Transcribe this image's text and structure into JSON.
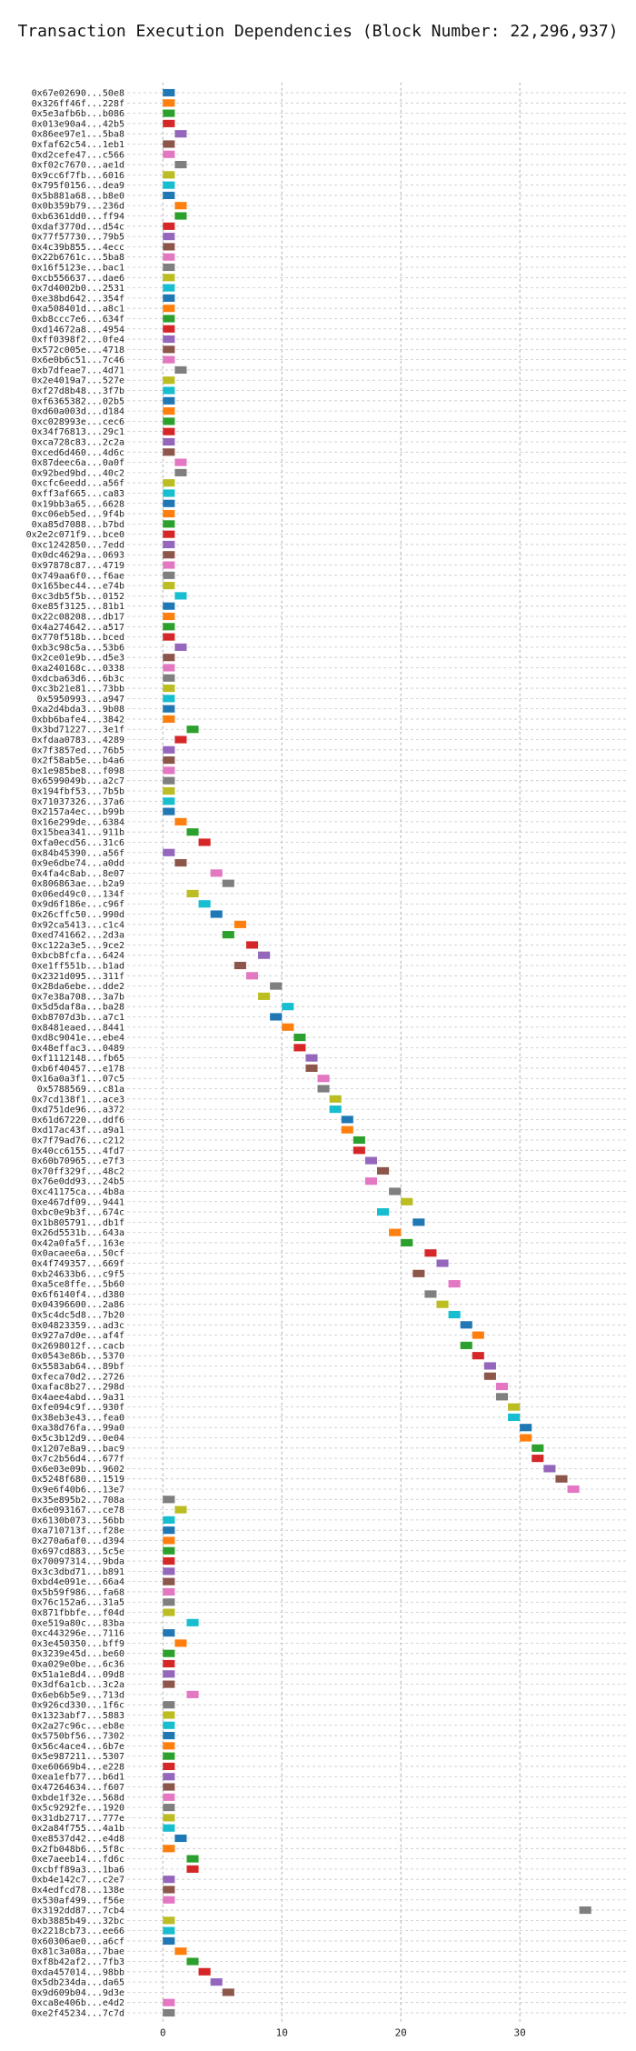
{
  "chart_data": {
    "type": "bar",
    "orientation": "horizontal",
    "title": "Transaction Execution Dependencies (Block Number: 22,296,937)",
    "xlabel": "",
    "ylabel": "",
    "xlim": [
      -3,
      39
    ],
    "xticks": [
      0,
      10,
      20,
      30
    ],
    "grid": true,
    "legend": false,
    "palette": [
      "#1f77b4",
      "#ff7f0e",
      "#2ca02c",
      "#d62728",
      "#9467bd",
      "#8c564b",
      "#e377c2",
      "#7f7f7f",
      "#bcbd22",
      "#17becf"
    ],
    "transactions": [
      {
        "label": "0x67e02690...50e8",
        "start": 0,
        "end": 1
      },
      {
        "label": "0x326ff46f...228f",
        "start": 0,
        "end": 1
      },
      {
        "label": "0x5e3afb6b...b086",
        "start": 0,
        "end": 1
      },
      {
        "label": "0x013e90a4...42b5",
        "start": 0,
        "end": 1
      },
      {
        "label": "0x86ee97e1...5ba8",
        "start": 1,
        "end": 2
      },
      {
        "label": "0xfaf62c54...1eb1",
        "start": 0,
        "end": 1
      },
      {
        "label": "0xd2cefe47...c566",
        "start": 0,
        "end": 1
      },
      {
        "label": "0xf02c7670...ae1d",
        "start": 1,
        "end": 2
      },
      {
        "label": "0x9cc6f7fb...6016",
        "start": 0,
        "end": 1
      },
      {
        "label": "0x795f0156...dea9",
        "start": 0,
        "end": 1
      },
      {
        "label": "0x5b881a68...b8e0",
        "start": 0,
        "end": 1
      },
      {
        "label": "0x0b359b79...236d",
        "start": 1,
        "end": 2
      },
      {
        "label": "0xb6361dd0...ff94",
        "start": 1,
        "end": 2
      },
      {
        "label": "0xdaf3770d...d54c",
        "start": 0,
        "end": 1
      },
      {
        "label": "0x77f57730...79b5",
        "start": 0,
        "end": 1
      },
      {
        "label": "0x4c39b855...4ecc",
        "start": 0,
        "end": 1
      },
      {
        "label": "0x22b6761c...5ba8",
        "start": 0,
        "end": 1
      },
      {
        "label": "0x16f5123e...bac1",
        "start": 0,
        "end": 1
      },
      {
        "label": "0xcb556637...dae6",
        "start": 0,
        "end": 1
      },
      {
        "label": "0x7d4002b0...2531",
        "start": 0,
        "end": 1
      },
      {
        "label": "0xe38bd642...354f",
        "start": 0,
        "end": 1
      },
      {
        "label": "0xa508401d...a8c1",
        "start": 0,
        "end": 1
      },
      {
        "label": "0xb8ccc7e6...634f",
        "start": 0,
        "end": 1
      },
      {
        "label": "0xd14672a8...4954",
        "start": 0,
        "end": 1
      },
      {
        "label": "0xff0398f2...0fe4",
        "start": 0,
        "end": 1
      },
      {
        "label": "0x572c005e...4718",
        "start": 0,
        "end": 1
      },
      {
        "label": "0x6e0b6c51...7c46",
        "start": 0,
        "end": 1
      },
      {
        "label": "0xb7dfeae7...4d71",
        "start": 1,
        "end": 2
      },
      {
        "label": "0x2e4019a7...527e",
        "start": 0,
        "end": 1
      },
      {
        "label": "0xf27d8b48...3f7b",
        "start": 0,
        "end": 1
      },
      {
        "label": "0xf6365382...02b5",
        "start": 0,
        "end": 1
      },
      {
        "label": "0xd60a003d...d184",
        "start": 0,
        "end": 1
      },
      {
        "label": "0xc028993e...cec6",
        "start": 0,
        "end": 1
      },
      {
        "label": "0x34f76813...29c1",
        "start": 0,
        "end": 1
      },
      {
        "label": "0xca728c83...2c2a",
        "start": 0,
        "end": 1
      },
      {
        "label": "0xced6d460...4d6c",
        "start": 0,
        "end": 1
      },
      {
        "label": "0x87deec6a...0a0f",
        "start": 1,
        "end": 2
      },
      {
        "label": "0x92bed9bd...40c2",
        "start": 1,
        "end": 2
      },
      {
        "label": "0xcfc6eedd...a56f",
        "start": 0,
        "end": 1
      },
      {
        "label": "0xff3af665...ca83",
        "start": 0,
        "end": 1
      },
      {
        "label": "0x19bb3a65...6628",
        "start": 0,
        "end": 1
      },
      {
        "label": "0xc06eb5ed...9f4b",
        "start": 0,
        "end": 1
      },
      {
        "label": "0xa85d7088...b7bd",
        "start": 0,
        "end": 1
      },
      {
        "label": "0x2e2c071f9...bce0",
        "start": 0,
        "end": 1
      },
      {
        "label": "0xc1242850...7edd",
        "start": 0,
        "end": 1
      },
      {
        "label": "0x0dc4629a...0693",
        "start": 0,
        "end": 1
      },
      {
        "label": "0x97878c87...4719",
        "start": 0,
        "end": 1
      },
      {
        "label": "0x749aa6f0...f6ae",
        "start": 0,
        "end": 1
      },
      {
        "label": "0x165bec44...e74b",
        "start": 0,
        "end": 1
      },
      {
        "label": "0xc3db5f5b...0152",
        "start": 1,
        "end": 2
      },
      {
        "label": "0xe85f3125...81b1",
        "start": 0,
        "end": 1
      },
      {
        "label": "0x22c08208...db17",
        "start": 0,
        "end": 1
      },
      {
        "label": "0x4a274642...a517",
        "start": 0,
        "end": 1
      },
      {
        "label": "0x770f518b...bced",
        "start": 0,
        "end": 1
      },
      {
        "label": "0xb3c98c5a...53b6",
        "start": 1,
        "end": 2
      },
      {
        "label": "0x2ce01e9b...d5e3",
        "start": 0,
        "end": 1
      },
      {
        "label": "0xa240168c...0338",
        "start": 0,
        "end": 1
      },
      {
        "label": "0xdcba63d6...6b3c",
        "start": 0,
        "end": 1
      },
      {
        "label": "0xc3b21e81...73bb",
        "start": 0,
        "end": 1
      },
      {
        "label": "0x5950993...a947",
        "start": 0,
        "end": 1
      },
      {
        "label": "0xa2d4bda3...9b08",
        "start": 0,
        "end": 1
      },
      {
        "label": "0xbb6bafe4...3842",
        "start": 0,
        "end": 1
      },
      {
        "label": "0x3bd71227...3e1f",
        "start": 2,
        "end": 3
      },
      {
        "label": "0xfdaa0783...4289",
        "start": 1,
        "end": 2
      },
      {
        "label": "0x7f3857ed...76b5",
        "start": 0,
        "end": 1
      },
      {
        "label": "0x2f58ab5e...b4a6",
        "start": 0,
        "end": 1
      },
      {
        "label": "0x1e985be8...f098",
        "start": 0,
        "end": 1
      },
      {
        "label": "0x6599049b...a2c7",
        "start": 0,
        "end": 1
      },
      {
        "label": "0x194fbf53...7b5b",
        "start": 0,
        "end": 1
      },
      {
        "label": "0x71037326...37a6",
        "start": 0,
        "end": 1
      },
      {
        "label": "0x2157a4ec...b99b",
        "start": 0,
        "end": 1
      },
      {
        "label": "0x16e299de...6384",
        "start": 1,
        "end": 2
      },
      {
        "label": "0x15bea341...911b",
        "start": 2,
        "end": 3
      },
      {
        "label": "0xfa0ecd56...31c6",
        "start": 3,
        "end": 4
      },
      {
        "label": "0x84b45390...a56f",
        "start": 0,
        "end": 1
      },
      {
        "label": "0x9e6dbe74...a0dd",
        "start": 1,
        "end": 2
      },
      {
        "label": "0x4fa4c8ab...8e07",
        "start": 4,
        "end": 5
      },
      {
        "label": "0x806863ae...b2a9",
        "start": 5,
        "end": 6
      },
      {
        "label": "0x06ed49c0...134f",
        "start": 2,
        "end": 3
      },
      {
        "label": "0x9d6f186e...c96f",
        "start": 3,
        "end": 4
      },
      {
        "label": "0x26cffc50...990d",
        "start": 4,
        "end": 5
      },
      {
        "label": "0x92ca5413...c1c4",
        "start": 6,
        "end": 7
      },
      {
        "label": "0xed741662...2d3a",
        "start": 5,
        "end": 6
      },
      {
        "label": "0xc122a3e5...9ce2",
        "start": 7,
        "end": 8
      },
      {
        "label": "0xbcb8fcfa...6424",
        "start": 8,
        "end": 9
      },
      {
        "label": "0xe1ff551b...b1ad",
        "start": 6,
        "end": 7
      },
      {
        "label": "0x2321d095...311f",
        "start": 7,
        "end": 8
      },
      {
        "label": "0x28da6ebe...dde2",
        "start": 9,
        "end": 10
      },
      {
        "label": "0x7e38a708...3a7b",
        "start": 8,
        "end": 9
      },
      {
        "label": "0x5d5daf8a...ba28",
        "start": 10,
        "end": 11
      },
      {
        "label": "0xb8707d3b...a7c1",
        "start": 9,
        "end": 10
      },
      {
        "label": "0x8481eaed...8441",
        "start": 10,
        "end": 11
      },
      {
        "label": "0xd8c9041e...ebe4",
        "start": 11,
        "end": 12
      },
      {
        "label": "0x48effac3...0489",
        "start": 11,
        "end": 12
      },
      {
        "label": "0xf1112148...fb65",
        "start": 12,
        "end": 13
      },
      {
        "label": "0xb6f40457...e178",
        "start": 12,
        "end": 13
      },
      {
        "label": "0x16a0a3f1...07c5",
        "start": 13,
        "end": 14
      },
      {
        "label": "0x5788569...c81a",
        "start": 13,
        "end": 14
      },
      {
        "label": "0x7cd138f1...ace3",
        "start": 14,
        "end": 15
      },
      {
        "label": "0xd751de96...a372",
        "start": 14,
        "end": 15
      },
      {
        "label": "0x61d67220...ddf6",
        "start": 15,
        "end": 16
      },
      {
        "label": "0xd17ac43f...a9a1",
        "start": 15,
        "end": 16
      },
      {
        "label": "0x7f79ad76...c212",
        "start": 16,
        "end": 17
      },
      {
        "label": "0x40cc6155...4fd7",
        "start": 16,
        "end": 17
      },
      {
        "label": "0x60b70965...e7f3",
        "start": 17,
        "end": 18
      },
      {
        "label": "0x70ff329f...48c2",
        "start": 18,
        "end": 19
      },
      {
        "label": "0x76e0dd93...24b5",
        "start": 17,
        "end": 18
      },
      {
        "label": "0xc41175ca...4b8a",
        "start": 19,
        "end": 20
      },
      {
        "label": "0xe467df09...9441",
        "start": 20,
        "end": 21
      },
      {
        "label": "0xbc0e9b3f...674c",
        "start": 18,
        "end": 19
      },
      {
        "label": "0x1b805791...db1f",
        "start": 21,
        "end": 22
      },
      {
        "label": "0x26d5531b...643a",
        "start": 19,
        "end": 20
      },
      {
        "label": "0x42a0fa5f...163e",
        "start": 20,
        "end": 21
      },
      {
        "label": "0x0acaee6a...50cf",
        "start": 22,
        "end": 23
      },
      {
        "label": "0x4f749357...669f",
        "start": 23,
        "end": 24
      },
      {
        "label": "0xb24633b6...c9f5",
        "start": 21,
        "end": 22
      },
      {
        "label": "0xa5ce8ffe...5b60",
        "start": 24,
        "end": 25
      },
      {
        "label": "0x6f6140f4...d380",
        "start": 22,
        "end": 23
      },
      {
        "label": "0x04396600...2a86",
        "start": 23,
        "end": 24
      },
      {
        "label": "0x5c4dc5d8...7b20",
        "start": 24,
        "end": 25
      },
      {
        "label": "0x04823359...ad3c",
        "start": 25,
        "end": 26
      },
      {
        "label": "0x927a7d0e...af4f",
        "start": 26,
        "end": 27
      },
      {
        "label": "0x2698012f...cacb",
        "start": 25,
        "end": 26
      },
      {
        "label": "0x0543e86b...5370",
        "start": 26,
        "end": 27
      },
      {
        "label": "0x5583ab64...89bf",
        "start": 27,
        "end": 28
      },
      {
        "label": "0xfeca70d2...2726",
        "start": 27,
        "end": 28
      },
      {
        "label": "0xafac8b27...298d",
        "start": 28,
        "end": 29
      },
      {
        "label": "0x4aee4abd...9a31",
        "start": 28,
        "end": 29
      },
      {
        "label": "0xfe094c9f...930f",
        "start": 29,
        "end": 30
      },
      {
        "label": "0x38eb3e43...fea0",
        "start": 29,
        "end": 30
      },
      {
        "label": "0xa38d76fa...99a0",
        "start": 30,
        "end": 31
      },
      {
        "label": "0x5c3b12d9...0e04",
        "start": 30,
        "end": 31
      },
      {
        "label": "0x1207e8a9...bac9",
        "start": 31,
        "end": 32
      },
      {
        "label": "0x7c2b56d4...677f",
        "start": 31,
        "end": 32
      },
      {
        "label": "0x6e03e09b...9602",
        "start": 32,
        "end": 33
      },
      {
        "label": "0x5248f680...1519",
        "start": 33,
        "end": 34
      },
      {
        "label": "0x9e6f40b6...13e7",
        "start": 34,
        "end": 35
      },
      {
        "label": "0x35e895b2...708a",
        "start": 0,
        "end": 1
      },
      {
        "label": "0x6e093167...ce78",
        "start": 1,
        "end": 2
      },
      {
        "label": "0x6130b073...56bb",
        "start": 0,
        "end": 1
      },
      {
        "label": "0xa710713f...f28e",
        "start": 0,
        "end": 1
      },
      {
        "label": "0x270a6af0...d394",
        "start": 0,
        "end": 1
      },
      {
        "label": "0x697cd883...5c5e",
        "start": 0,
        "end": 1
      },
      {
        "label": "0x70097314...9bda",
        "start": 0,
        "end": 1
      },
      {
        "label": "0x3c3dbd71...b891",
        "start": 0,
        "end": 1
      },
      {
        "label": "0xbd4e091e...66a4",
        "start": 0,
        "end": 1
      },
      {
        "label": "0x5b59f986...fa68",
        "start": 0,
        "end": 1
      },
      {
        "label": "0x76c152a6...31a5",
        "start": 0,
        "end": 1
      },
      {
        "label": "0x871fbbfe...f04d",
        "start": 0,
        "end": 1
      },
      {
        "label": "0xe519a80c...83ba",
        "start": 2,
        "end": 3
      },
      {
        "label": "0xc443296e...7116",
        "start": 0,
        "end": 1
      },
      {
        "label": "0x3e450350...bff9",
        "start": 1,
        "end": 2
      },
      {
        "label": "0x3239e45d...be60",
        "start": 0,
        "end": 1
      },
      {
        "label": "0xa029e0be...6c36",
        "start": 0,
        "end": 1
      },
      {
        "label": "0x51a1e8d4...09d8",
        "start": 0,
        "end": 1
      },
      {
        "label": "0x3df6a1cb...3c2a",
        "start": 0,
        "end": 1
      },
      {
        "label": "0x6eb6b5e9...713d",
        "start": 2,
        "end": 3
      },
      {
        "label": "0x926cd330...1f6c",
        "start": 0,
        "end": 1
      },
      {
        "label": "0x1323abf7...5883",
        "start": 0,
        "end": 1
      },
      {
        "label": "0x2a27c96c...eb8e",
        "start": 0,
        "end": 1
      },
      {
        "label": "0x5750bf56...7302",
        "start": 0,
        "end": 1
      },
      {
        "label": "0x56c4ace4...6b7e",
        "start": 0,
        "end": 1
      },
      {
        "label": "0x5e987211...5307",
        "start": 0,
        "end": 1
      },
      {
        "label": "0xe60669b4...e228",
        "start": 0,
        "end": 1
      },
      {
        "label": "0xea1efb77...b6d1",
        "start": 0,
        "end": 1
      },
      {
        "label": "0x47264634...f607",
        "start": 0,
        "end": 1
      },
      {
        "label": "0xbde1f32e...568d",
        "start": 0,
        "end": 1
      },
      {
        "label": "0x5c9292fe...1920",
        "start": 0,
        "end": 1
      },
      {
        "label": "0x31db2717...777e",
        "start": 0,
        "end": 1
      },
      {
        "label": "0x2a84f755...4a1b",
        "start": 0,
        "end": 1
      },
      {
        "label": "0xe8537d42...e4d8",
        "start": 1,
        "end": 2
      },
      {
        "label": "0x2fb048b6...5f8c",
        "start": 0,
        "end": 1
      },
      {
        "label": "0xe7aeeb14...fd6c",
        "start": 2,
        "end": 3
      },
      {
        "label": "0xcbff89a3...1ba6",
        "start": 2,
        "end": 3
      },
      {
        "label": "0xb4e142c7...c2e7",
        "start": 0,
        "end": 1
      },
      {
        "label": "0x4edfcd78...138e",
        "start": 0,
        "end": 1
      },
      {
        "label": "0x530af499...f56e",
        "start": 0,
        "end": 1
      },
      {
        "label": "0x3192dd87...7cb4",
        "start": 35,
        "end": 36
      },
      {
        "label": "0xb3885b49...32bc",
        "start": 0,
        "end": 1
      },
      {
        "label": "0x2218cb73...ee66",
        "start": 0,
        "end": 1
      },
      {
        "label": "0x60306ae0...a6cf",
        "start": 0,
        "end": 1
      },
      {
        "label": "0x81c3a08a...7bae",
        "start": 1,
        "end": 2
      },
      {
        "label": "0xf8b42af2...7fb3",
        "start": 2,
        "end": 3
      },
      {
        "label": "0xda457014...98bb",
        "start": 3,
        "end": 4
      },
      {
        "label": "0x5db234da...da65",
        "start": 4,
        "end": 5
      },
      {
        "label": "0x9d609b04...9d3e",
        "start": 5,
        "end": 6
      },
      {
        "label": "0xca8e406b...e4d2",
        "start": 0,
        "end": 1
      },
      {
        "label": "0xe2f45234...7c7d",
        "start": 0,
        "end": 1
      }
    ]
  }
}
